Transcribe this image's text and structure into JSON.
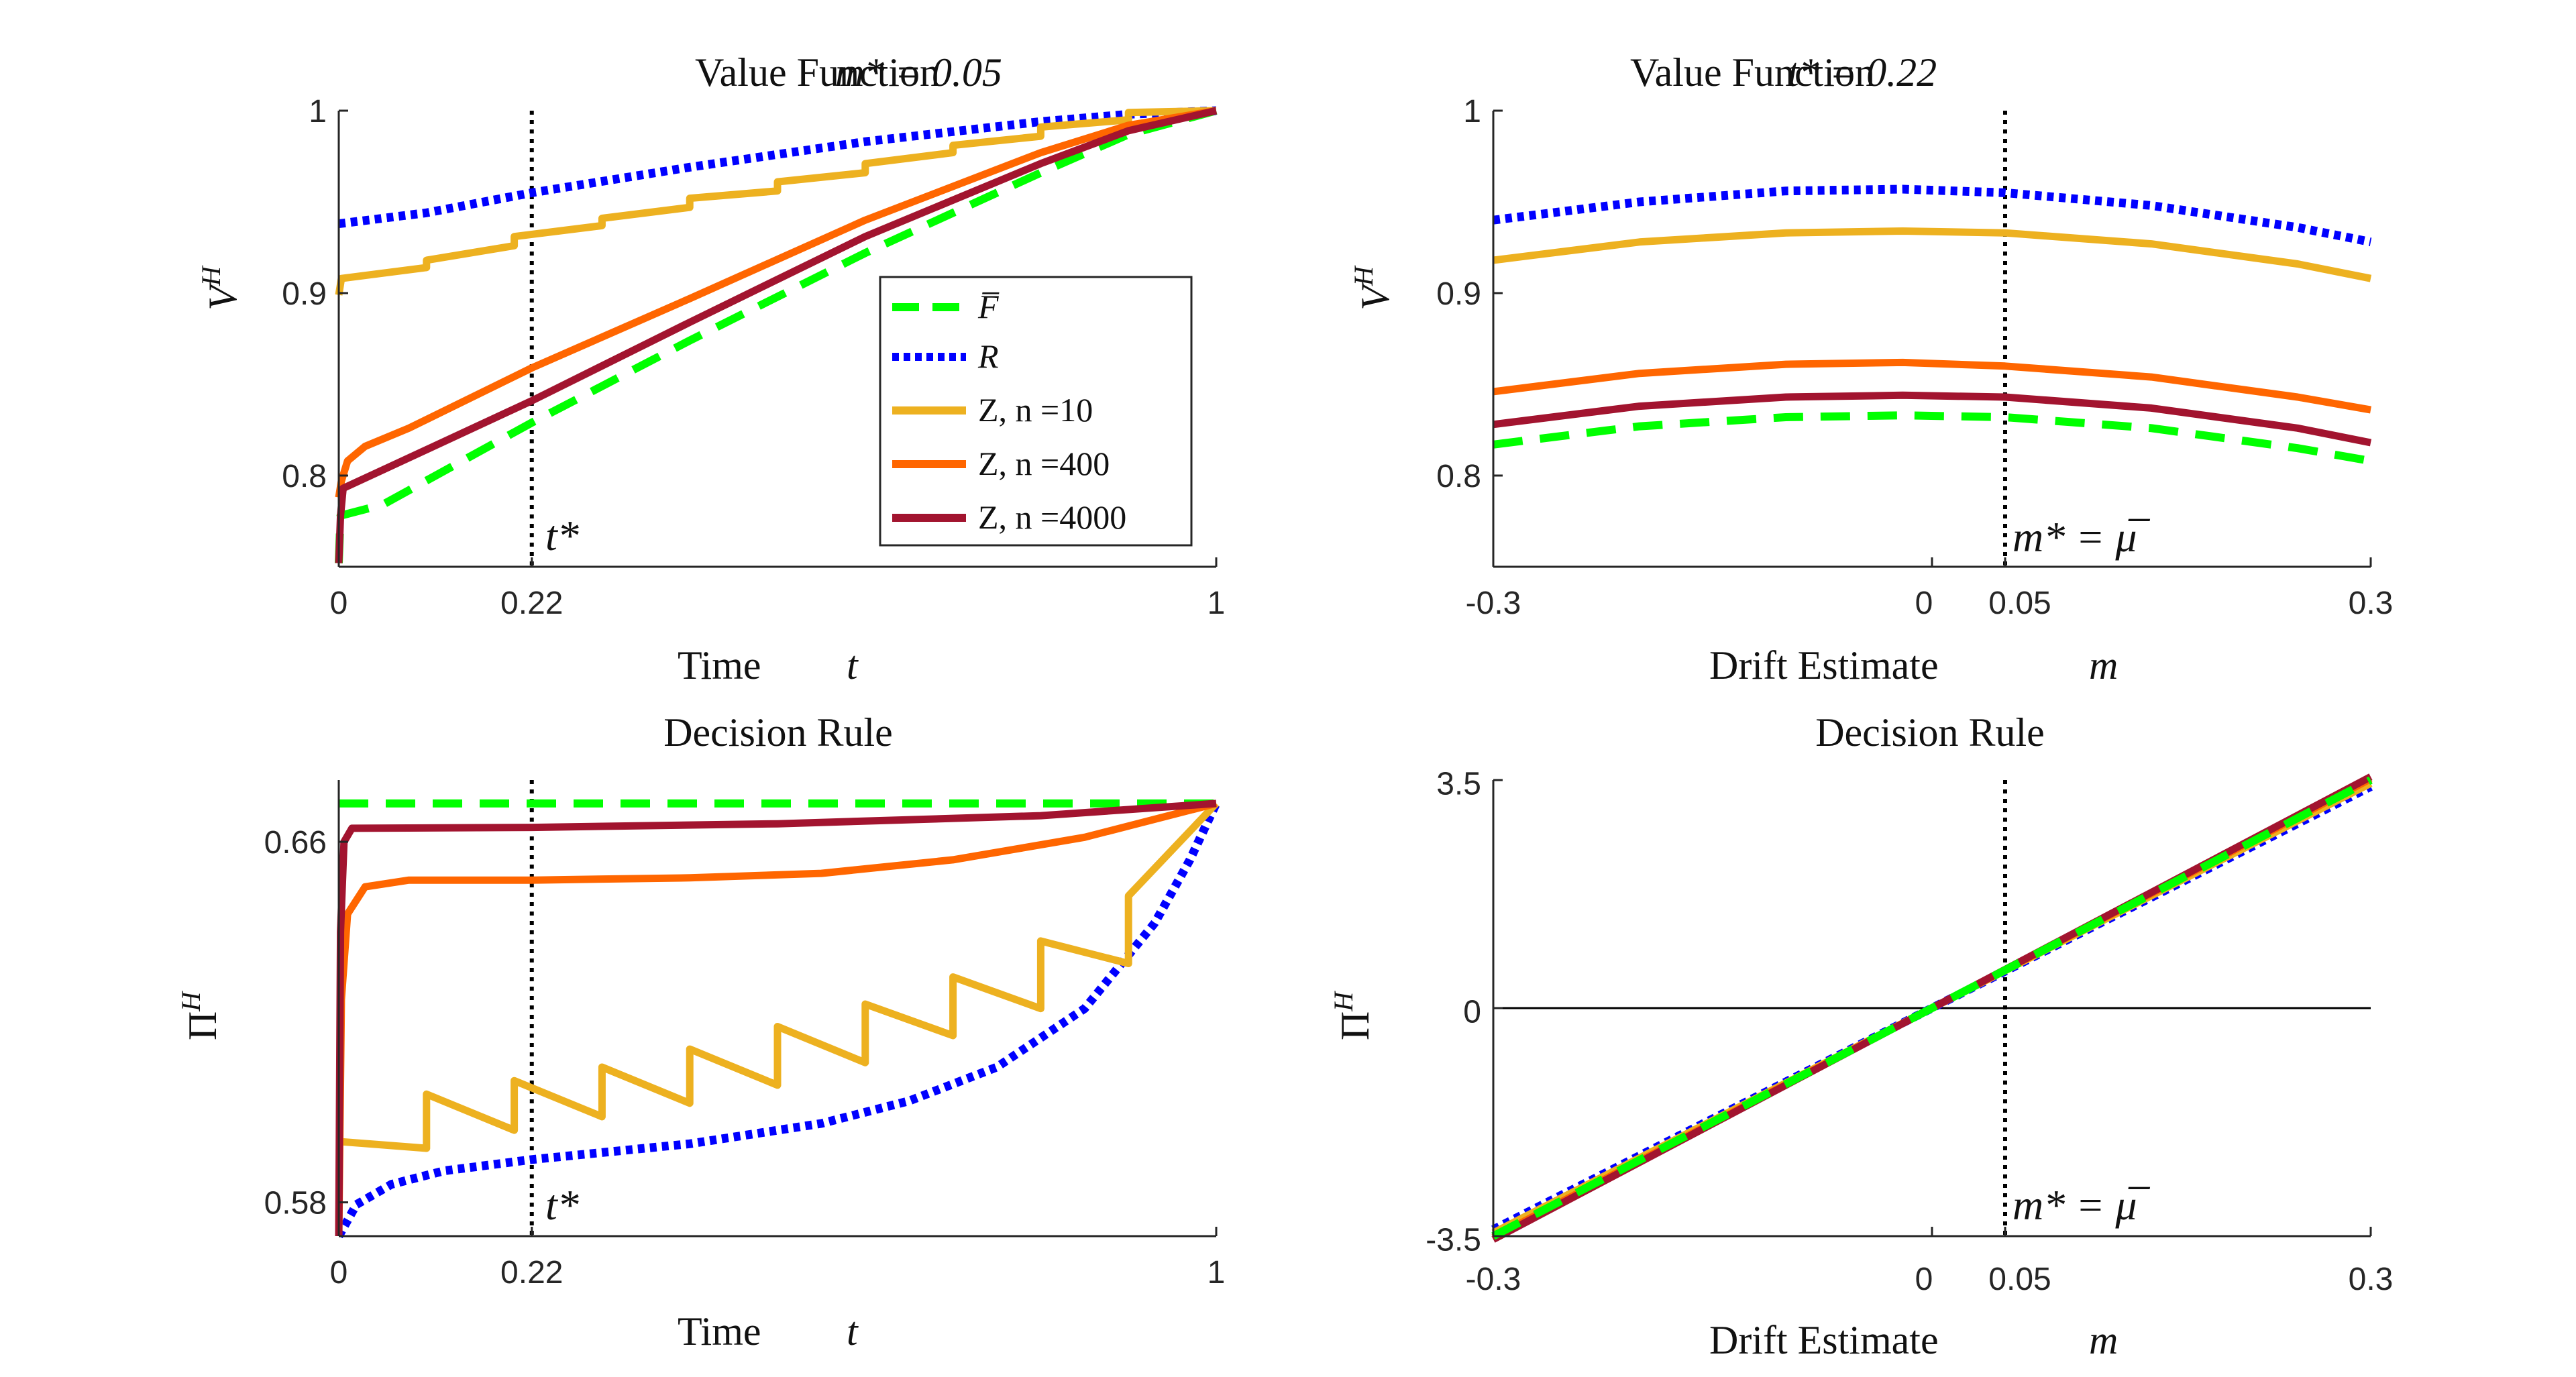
{
  "colors": {
    "F": "#00ff00",
    "R": "#0000ff",
    "Z10": "#edb120",
    "Z400": "#ff6600",
    "Z4000": "#a2142f",
    "vline": "#000000",
    "axis": "#262626"
  },
  "legend": {
    "F": "F̅",
    "R": "R",
    "Z10": "Z, n =10",
    "Z400": "Z, n =400",
    "Z4000": "Z, n =4000"
  },
  "chart_data": [
    {
      "id": "tl",
      "type": "line",
      "title": "Value Function",
      "title_param": "m* =  0.05",
      "xlabel": "Time",
      "xlabel_var": "t",
      "ylabel": "V^H",
      "xlim": [
        0,
        1
      ],
      "ylim": [
        0.75,
        1.0
      ],
      "xticks": [
        0,
        0.22,
        1
      ],
      "xtick_labels": [
        "0",
        "0.22",
        "1"
      ],
      "yticks": [
        0.8,
        0.9,
        1.0
      ],
      "ytick_labels": [
        "0.8",
        "0.9",
        "1"
      ],
      "vline": {
        "x": 0.22,
        "label": "t*"
      },
      "legend_location": "inside-right",
      "series": [
        {
          "key": "F",
          "name": "F̅",
          "dash": "dashed",
          "points": [
            [
              0,
              0.752
            ],
            [
              0.002,
              0.778
            ],
            [
              0.05,
              0.784
            ],
            [
              0.22,
              0.829
            ],
            [
              0.4,
              0.874
            ],
            [
              0.6,
              0.922
            ],
            [
              0.8,
              0.966
            ],
            [
              0.9,
              0.987
            ],
            [
              1,
              1.0
            ]
          ]
        },
        {
          "key": "R",
          "name": "R",
          "dash": "dotted",
          "points": [
            [
              0,
              0.938
            ],
            [
              0.1,
              0.944
            ],
            [
              0.22,
              0.955
            ],
            [
              0.4,
              0.969
            ],
            [
              0.6,
              0.983
            ],
            [
              0.8,
              0.994
            ],
            [
              0.9,
              0.998
            ],
            [
              1,
              1.0
            ]
          ]
        },
        {
          "key": "Z10",
          "name": "Z, n =10",
          "dash": "solid",
          "points": [
            [
              0,
              0.899
            ],
            [
              0.003,
              0.908
            ],
            [
              0.1,
              0.914
            ],
            [
              0.1,
              0.918
            ],
            [
              0.2,
              0.926
            ],
            [
              0.2,
              0.931
            ],
            [
              0.3,
              0.937
            ],
            [
              0.3,
              0.941
            ],
            [
              0.4,
              0.947
            ],
            [
              0.4,
              0.952
            ],
            [
              0.5,
              0.956
            ],
            [
              0.5,
              0.961
            ],
            [
              0.6,
              0.966
            ],
            [
              0.6,
              0.971
            ],
            [
              0.7,
              0.977
            ],
            [
              0.7,
              0.981
            ],
            [
              0.8,
              0.986
            ],
            [
              0.8,
              0.991
            ],
            [
              0.9,
              0.995
            ],
            [
              0.9,
              0.999
            ],
            [
              1,
              1.0
            ]
          ]
        },
        {
          "key": "Z400",
          "name": "Z, n =400",
          "dash": "solid",
          "points": [
            [
              0,
              0.788
            ],
            [
              0.003,
              0.797
            ],
            [
              0.01,
              0.808
            ],
            [
              0.03,
              0.816
            ],
            [
              0.08,
              0.826
            ],
            [
              0.22,
              0.859
            ],
            [
              0.4,
              0.897
            ],
            [
              0.6,
              0.94
            ],
            [
              0.8,
              0.977
            ],
            [
              0.9,
              0.992
            ],
            [
              1,
              1.0
            ]
          ]
        },
        {
          "key": "Z4000",
          "name": "Z, n =4000",
          "dash": "solid",
          "points": [
            [
              0,
              0.752
            ],
            [
              0.002,
              0.778
            ],
            [
              0.005,
              0.793
            ],
            [
              0.05,
              0.803
            ],
            [
              0.22,
              0.841
            ],
            [
              0.4,
              0.884
            ],
            [
              0.6,
              0.931
            ],
            [
              0.8,
              0.971
            ],
            [
              0.9,
              0.989
            ],
            [
              1,
              1.0
            ]
          ]
        }
      ]
    },
    {
      "id": "tr",
      "type": "line",
      "title": "Value Function",
      "title_param": "t* =  0.22",
      "xlabel": "Drift Estimate",
      "xlabel_var": "m",
      "ylabel": "V^H",
      "xlim": [
        -0.3,
        0.3
      ],
      "ylim": [
        0.75,
        1.0
      ],
      "xticks": [
        -0.3,
        0,
        0.05,
        0.3
      ],
      "xtick_labels": [
        "-0.3",
        "0",
        "0.05",
        "0.3"
      ],
      "yticks": [
        0.8,
        0.9,
        1.0
      ],
      "ytick_labels": [
        "0.8",
        "0.9",
        "1"
      ],
      "vline": {
        "x": 0.05,
        "label": "m* = μ̅"
      },
      "series": [
        {
          "key": "F",
          "name": "F̅",
          "dash": "dashed",
          "points": [
            [
              -0.3,
              0.817
            ],
            [
              -0.2,
              0.827
            ],
            [
              -0.1,
              0.832
            ],
            [
              -0.02,
              0.833
            ],
            [
              0.05,
              0.832
            ],
            [
              0.15,
              0.826
            ],
            [
              0.25,
              0.815
            ],
            [
              0.3,
              0.808
            ]
          ]
        },
        {
          "key": "R",
          "name": "R",
          "dash": "dotted",
          "points": [
            [
              -0.3,
              0.94
            ],
            [
              -0.2,
              0.95
            ],
            [
              -0.1,
              0.956
            ],
            [
              -0.02,
              0.957
            ],
            [
              0.05,
              0.955
            ],
            [
              0.15,
              0.948
            ],
            [
              0.25,
              0.936
            ],
            [
              0.3,
              0.928
            ]
          ]
        },
        {
          "key": "Z10",
          "name": "Z, n =10",
          "dash": "solid",
          "points": [
            [
              -0.3,
              0.918
            ],
            [
              -0.2,
              0.928
            ],
            [
              -0.1,
              0.933
            ],
            [
              -0.02,
              0.934
            ],
            [
              0.05,
              0.933
            ],
            [
              0.15,
              0.927
            ],
            [
              0.25,
              0.916
            ],
            [
              0.3,
              0.908
            ]
          ]
        },
        {
          "key": "Z400",
          "name": "Z, n =400",
          "dash": "solid",
          "points": [
            [
              -0.3,
              0.846
            ],
            [
              -0.2,
              0.856
            ],
            [
              -0.1,
              0.861
            ],
            [
              -0.02,
              0.862
            ],
            [
              0.05,
              0.86
            ],
            [
              0.15,
              0.854
            ],
            [
              0.25,
              0.843
            ],
            [
              0.3,
              0.836
            ]
          ]
        },
        {
          "key": "Z4000",
          "name": "Z, n =4000",
          "dash": "solid",
          "points": [
            [
              -0.3,
              0.828
            ],
            [
              -0.2,
              0.838
            ],
            [
              -0.1,
              0.843
            ],
            [
              -0.02,
              0.844
            ],
            [
              0.05,
              0.843
            ],
            [
              0.15,
              0.837
            ],
            [
              0.25,
              0.826
            ],
            [
              0.3,
              0.818
            ]
          ]
        }
      ]
    },
    {
      "id": "bl",
      "type": "line",
      "title": "Decision Rule",
      "xlabel": "Time",
      "xlabel_var": "t",
      "ylabel": "Π^H",
      "xlim": [
        0,
        1
      ],
      "ylim": [
        0.5725,
        0.6737
      ],
      "xticks": [
        0,
        0.22,
        1
      ],
      "xtick_labels": [
        "0",
        "0.22",
        "1"
      ],
      "yticks": [
        0.58,
        0.66
      ],
      "ytick_labels": [
        "0.58",
        "0.66"
      ],
      "vline": {
        "x": 0.22,
        "label": "t*"
      },
      "series": [
        {
          "key": "F",
          "name": "F̅",
          "dash": "dashed",
          "points": [
            [
              0,
              0.6685
            ],
            [
              1,
              0.6685
            ]
          ]
        },
        {
          "key": "R",
          "name": "R",
          "dash": "dotted",
          "points": [
            [
              0,
              0.5725
            ],
            [
              0.02,
              0.5795
            ],
            [
              0.06,
              0.584
            ],
            [
              0.12,
              0.587
            ],
            [
              0.22,
              0.5895
            ],
            [
              0.4,
              0.593
            ],
            [
              0.55,
              0.5975
            ],
            [
              0.65,
              0.6025
            ],
            [
              0.75,
              0.61
            ],
            [
              0.85,
              0.623
            ],
            [
              0.93,
              0.642
            ],
            [
              0.97,
              0.656
            ],
            [
              1,
              0.6685
            ]
          ]
        },
        {
          "key": "Z10",
          "name": "Z, n =10",
          "dash": "solid",
          "points": [
            [
              0,
              0.5935
            ],
            [
              0.1,
              0.592
            ],
            [
              0.1,
              0.604
            ],
            [
              0.2,
              0.596
            ],
            [
              0.2,
              0.607
            ],
            [
              0.3,
              0.599
            ],
            [
              0.3,
              0.61
            ],
            [
              0.4,
              0.602
            ],
            [
              0.4,
              0.614
            ],
            [
              0.5,
              0.606
            ],
            [
              0.5,
              0.619
            ],
            [
              0.6,
              0.611
            ],
            [
              0.6,
              0.624
            ],
            [
              0.7,
              0.617
            ],
            [
              0.7,
              0.63
            ],
            [
              0.8,
              0.623
            ],
            [
              0.8,
              0.638
            ],
            [
              0.9,
              0.633
            ],
            [
              0.9,
              0.648
            ],
            [
              1,
              0.6685
            ]
          ]
        },
        {
          "key": "Z400",
          "name": "Z, n =400",
          "dash": "solid",
          "points": [
            [
              0,
              0.5725
            ],
            [
              0.003,
              0.625
            ],
            [
              0.01,
              0.644
            ],
            [
              0.03,
              0.65
            ],
            [
              0.08,
              0.6515
            ],
            [
              0.22,
              0.6515
            ],
            [
              0.4,
              0.652
            ],
            [
              0.55,
              0.653
            ],
            [
              0.7,
              0.656
            ],
            [
              0.85,
              0.661
            ],
            [
              0.95,
              0.666
            ],
            [
              1,
              0.6685
            ]
          ]
        },
        {
          "key": "Z4000",
          "name": "Z, n =4000",
          "dash": "solid",
          "points": [
            [
              0,
              0.5725
            ],
            [
              0.002,
              0.64
            ],
            [
              0.006,
              0.66
            ],
            [
              0.015,
              0.663
            ],
            [
              0.22,
              0.6632
            ],
            [
              0.5,
              0.664
            ],
            [
              0.8,
              0.6658
            ],
            [
              1,
              0.6685
            ]
          ]
        }
      ]
    },
    {
      "id": "br",
      "type": "line",
      "title": "Decision Rule",
      "xlabel": "Drift Estimate",
      "xlabel_var": "m",
      "ylabel": "Π^H",
      "xlim": [
        -0.3,
        0.3
      ],
      "ylim": [
        -3.5,
        3.5
      ],
      "xticks": [
        -0.3,
        0,
        0.05,
        0.3
      ],
      "xtick_labels": [
        "-0.3",
        "0",
        "0.05",
        "0.3"
      ],
      "yticks": [
        -3.5,
        0,
        3.5
      ],
      "ytick_labels": [
        "-3.5",
        "0",
        "3.5"
      ],
      "vline": {
        "x": 0.05,
        "label": "m* = μ̅"
      },
      "hline": {
        "y": 0
      },
      "series": [
        {
          "key": "R",
          "name": "R",
          "dash": "dotted",
          "points": [
            [
              -0.3,
              -3.4
            ],
            [
              0.3,
              3.4
            ]
          ]
        },
        {
          "key": "Z10",
          "name": "Z, n =10",
          "dash": "solid",
          "points": [
            [
              -0.3,
              -3.45
            ],
            [
              0.3,
              3.45
            ]
          ]
        },
        {
          "key": "Z400",
          "name": "Z, n =400",
          "dash": "solid",
          "points": [
            [
              -0.3,
              -3.52
            ],
            [
              0.3,
              3.52
            ]
          ]
        },
        {
          "key": "Z4000",
          "name": "Z, n =4000",
          "dash": "solid",
          "points": [
            [
              -0.3,
              -3.55
            ],
            [
              0.3,
              3.55
            ]
          ]
        },
        {
          "key": "F",
          "name": "F̅",
          "dash": "dashed",
          "points": [
            [
              -0.3,
              -3.5
            ],
            [
              0.3,
              3.5
            ]
          ]
        }
      ]
    }
  ]
}
